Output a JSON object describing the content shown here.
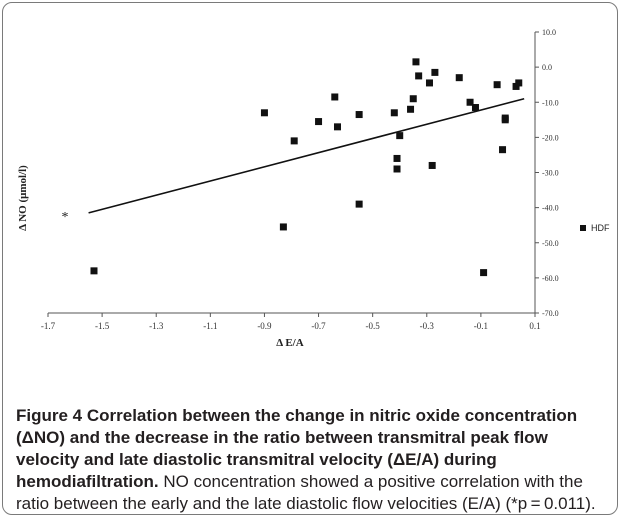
{
  "chart_data": {
    "type": "scatter",
    "xlabel": "Δ E/A",
    "ylabel": "Δ NO (μmol/l)",
    "xlim": [
      -1.7,
      0.1
    ],
    "ylim": [
      -70,
      10
    ],
    "x_ticks": [
      "-1.7",
      "-1.5",
      "-1.3",
      "-1.1",
      "-0.9",
      "-0.7",
      "-0.5",
      "-0.3",
      "-0.1",
      "0.1"
    ],
    "y_ticks": [
      "10.0",
      "0.0",
      "-10.0",
      "-20.0",
      "-30.0",
      "-40.0",
      "-50.0",
      "-60.0",
      "-70.0"
    ],
    "series": [
      {
        "name": "HDF",
        "marker": "square",
        "color": "#111111",
        "points": [
          [
            -1.53,
            -58.0
          ],
          [
            -0.83,
            -45.5
          ],
          [
            -0.9,
            -13.0
          ],
          [
            -0.79,
            -21.0
          ],
          [
            -0.7,
            -15.5
          ],
          [
            -0.64,
            -8.5
          ],
          [
            -0.63,
            -17.0
          ],
          [
            -0.55,
            -13.5
          ],
          [
            -0.55,
            -39.0
          ],
          [
            -0.42,
            -13.0
          ],
          [
            -0.41,
            -29.0
          ],
          [
            -0.41,
            -26.0
          ],
          [
            -0.4,
            -19.5
          ],
          [
            -0.36,
            -12.0
          ],
          [
            -0.35,
            -9.0
          ],
          [
            -0.34,
            1.5
          ],
          [
            -0.33,
            -2.5
          ],
          [
            -0.29,
            -4.5
          ],
          [
            -0.28,
            -28.0
          ],
          [
            -0.27,
            -1.5
          ],
          [
            -0.18,
            -3.0
          ],
          [
            -0.14,
            -10.0
          ],
          [
            -0.12,
            -11.5
          ],
          [
            -0.09,
            -58.5
          ],
          [
            -0.04,
            -5.0
          ],
          [
            -0.02,
            -23.5
          ],
          [
            -0.01,
            -15.0
          ],
          [
            -0.01,
            -14.5
          ],
          [
            0.03,
            -5.5
          ],
          [
            0.04,
            -4.5
          ]
        ]
      }
    ],
    "trendline": {
      "x": [
        -1.55,
        0.06
      ],
      "y": [
        -41.5,
        -9.0
      ]
    },
    "annotation": "*",
    "legend_position": "right"
  },
  "caption": {
    "label": "Figure 4",
    "title": "Correlation between the change in nitric oxide concentration (ΔNO) and the decrease in the ratio between transmitral peak flow velocity and late diastolic transmitral velocity (ΔE/A) during hemodiafiltration.",
    "body": "NO concentration showed a positive correlation with the ratio between the early and the late diastolic flow velocities (E/A) (*p = 0.011)."
  }
}
